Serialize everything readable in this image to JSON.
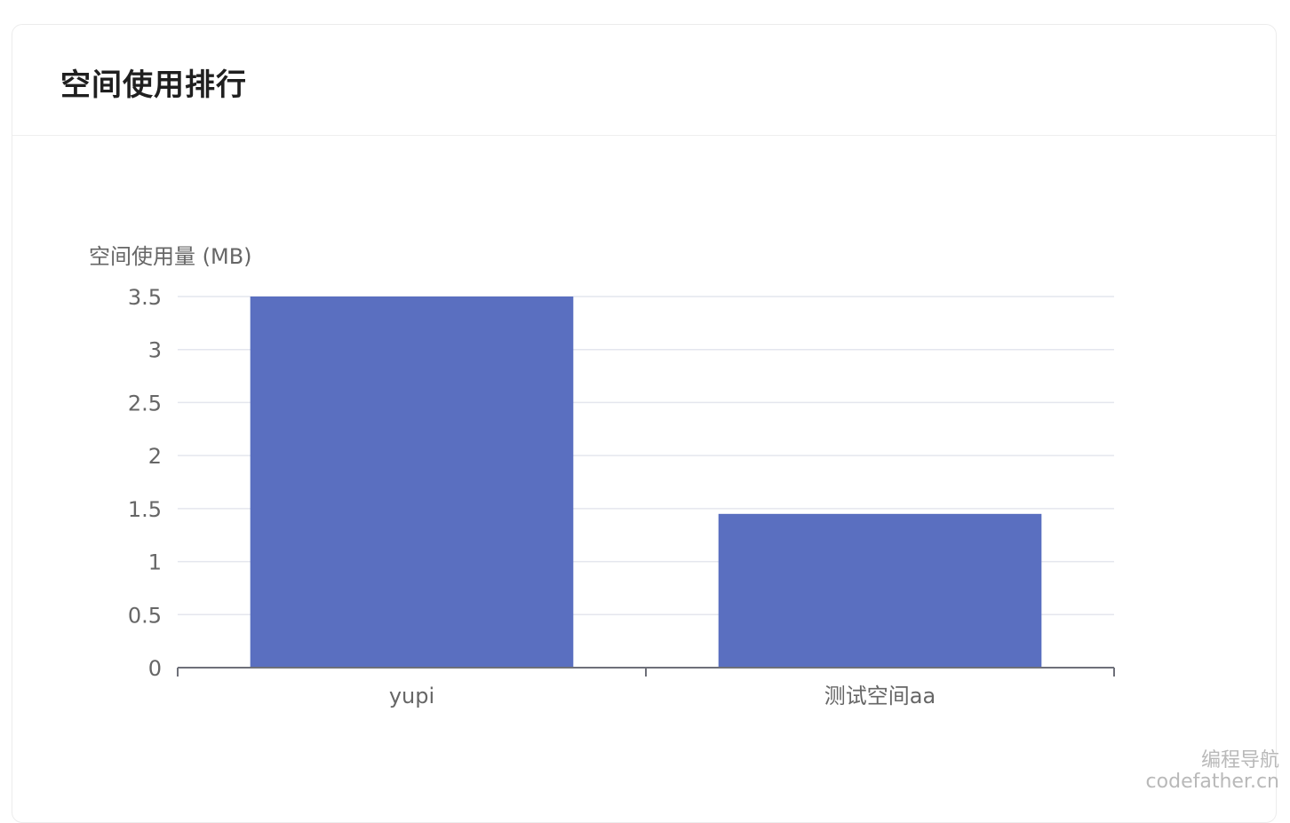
{
  "card": {
    "title": "空间使用排行"
  },
  "chart_data": {
    "type": "bar",
    "title": "",
    "ylabel": "空间使用量 (MB)",
    "xlabel": "",
    "categories": [
      "yupi",
      "测试空间aa"
    ],
    "values": [
      3.5,
      1.45
    ],
    "ylim": [
      0,
      3.5
    ],
    "yticks": [
      "0",
      "0.5",
      "1",
      "1.5",
      "2",
      "2.5",
      "3",
      "3.5"
    ],
    "grid": true,
    "bar_color": "#5a6fc0"
  },
  "watermark": {
    "line1": "编程导航",
    "line2": "codefather.cn"
  }
}
